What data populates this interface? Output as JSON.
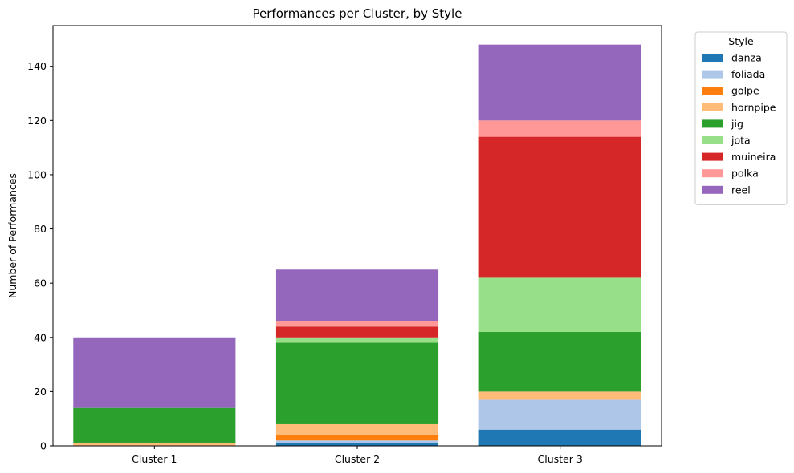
{
  "chart_data": {
    "type": "bar",
    "stacked": true,
    "title": "Performances per Cluster, by Style",
    "xlabel": "",
    "ylabel": "Number of Performances",
    "ylim": [
      0,
      155
    ],
    "yticks": [
      0,
      20,
      40,
      60,
      80,
      100,
      120,
      140
    ],
    "categories": [
      "Cluster 1",
      "Cluster 2",
      "Cluster 3"
    ],
    "legend_title": "Style",
    "legend_position": "outside-top-right",
    "grid": false,
    "series": [
      {
        "name": "danza",
        "color": "#1f77b4",
        "values": [
          0,
          1,
          6
        ]
      },
      {
        "name": "foliada",
        "color": "#aec7e8",
        "values": [
          0,
          1,
          11
        ]
      },
      {
        "name": "golpe",
        "color": "#ff7f0e",
        "values": [
          0,
          2,
          0
        ]
      },
      {
        "name": "hornpipe",
        "color": "#ffbb78",
        "values": [
          1,
          4,
          3
        ]
      },
      {
        "name": "jig",
        "color": "#2ca02c",
        "values": [
          13,
          30,
          22
        ]
      },
      {
        "name": "jota",
        "color": "#98df8a",
        "values": [
          0,
          2,
          20
        ]
      },
      {
        "name": "muineira",
        "color": "#d62728",
        "values": [
          0,
          4,
          52
        ]
      },
      {
        "name": "polka",
        "color": "#ff9896",
        "values": [
          0,
          2,
          6
        ]
      },
      {
        "name": "reel",
        "color": "#9467bd",
        "values": [
          26,
          19,
          28
        ]
      }
    ]
  }
}
